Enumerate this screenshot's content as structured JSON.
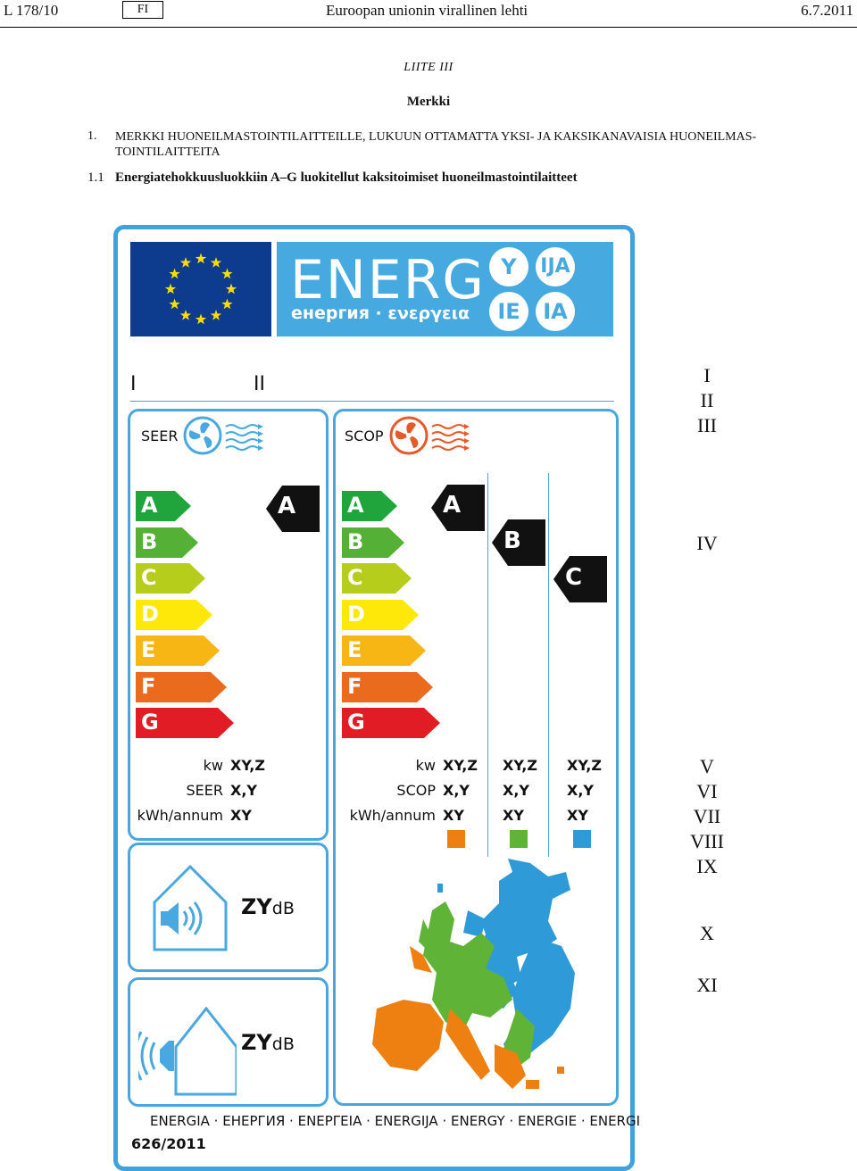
{
  "header": {
    "page_ref": "L  178/10",
    "lang": "FI",
    "journal": "Euroopan unionin virallinen lehti",
    "date": "6.7.2011"
  },
  "annex": "LIITE  III",
  "heading": "Merkki",
  "section1": {
    "num": "1.",
    "text": "MERKKI HUONEILMASTOINTILAITTEILLE, LUKUUN OTTAMATTA YKSI- JA KAKSIKANAVAISIA HUONEILMAS-TOINTILAITTEITA"
  },
  "section11": {
    "num": "1.1",
    "text": "Energiatehokkuusluokkiin A–G luokitellut kaksitoimiset huoneilmastointilaitteet"
  },
  "label": {
    "energ_word": "ENERG",
    "energ_sub": "енергия · ενεργεια",
    "lang_circles": [
      "Y",
      "IJA",
      "IE",
      "IA"
    ],
    "roman_left_I": "I",
    "roman_left_II": "II",
    "seer_label": "SEER",
    "scop_label": "SCOP",
    "classes": [
      "A",
      "B",
      "C",
      "D",
      "E",
      "F",
      "G"
    ],
    "seer_rating": "A",
    "scop_ratings": [
      "A",
      "B",
      "C"
    ],
    "seer_table": {
      "labels": [
        "kw",
        "SEER",
        "kWh/annum"
      ],
      "values": [
        "XY,Z",
        "X,Y",
        "XY"
      ]
    },
    "scop_table": {
      "labels": [
        "kw",
        "SCOP",
        "kWh/annum"
      ],
      "col1": [
        "XY,Z",
        "X,Y",
        "XY"
      ],
      "col2": [
        "XY,Z",
        "X,Y",
        "XY"
      ],
      "col3": [
        "XY,Z",
        "X,Y",
        "XY"
      ]
    },
    "zone_colors": [
      "#ee8012",
      "#5fb336",
      "#2f9ad8"
    ],
    "noise_indoor": {
      "value": "ZY",
      "unit": "dB"
    },
    "noise_outdoor": {
      "value": "ZY",
      "unit": "dB"
    },
    "footer_langs": "ENERGIA · ЕНЕРГИЯ · ΕΝΕΡΓΕΙΑ · ENERGIJA · ENERGY · ENERGIE · ENERGI",
    "footer_reg": "626/2011"
  },
  "roman_right": [
    "I",
    "II",
    "III",
    "IV",
    "V",
    "VI",
    "VII",
    "VIII",
    "IX",
    "X",
    "XI"
  ],
  "colors": {
    "frame": "#3ea3dd",
    "eu_blue": "#0d3c8e",
    "star": "#ffdd00",
    "energ_band": "#46aae0",
    "class_A": "#1fa53c",
    "class_B": "#55b135",
    "class_C": "#b7cd1b",
    "class_D": "#fee80a",
    "class_E": "#f8b614",
    "class_F": "#ea6b1d",
    "class_G": "#e11c25",
    "rating": "#111111"
  },
  "icons": [
    "eu-flag",
    "fan-cool-icon",
    "fan-heat-icon",
    "indoor-speaker-icon",
    "outdoor-speaker-icon",
    "europe-map"
  ]
}
